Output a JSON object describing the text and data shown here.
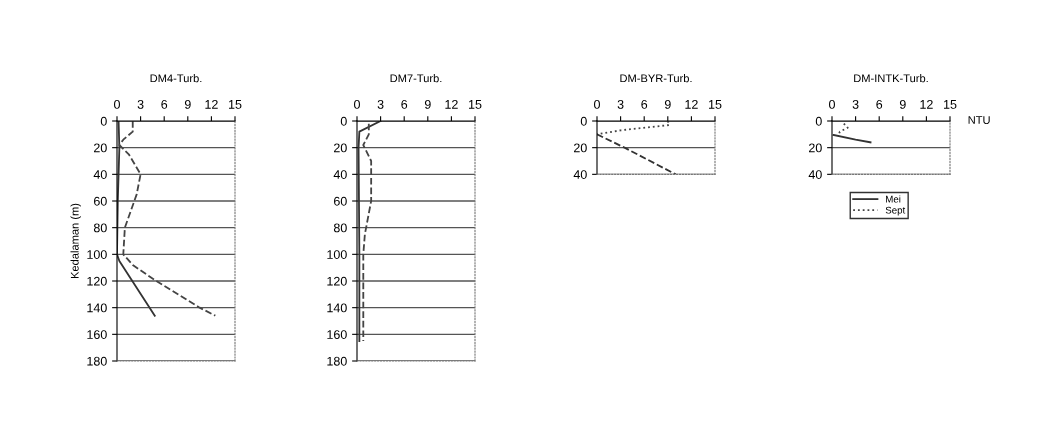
{
  "chart_data": [
    {
      "type": "line",
      "title": "DM4-Turb.",
      "ylabel": "Kedalaman (m)",
      "xlim": [
        0,
        15
      ],
      "xticks": [
        0,
        3,
        6,
        9,
        12,
        15
      ],
      "ylim": [
        180,
        0
      ],
      "yticks": [
        0,
        20,
        40,
        60,
        80,
        100,
        120,
        140,
        160,
        180
      ],
      "grid": "y",
      "legend": false,
      "series": [
        {
          "color": "#333333",
          "line_style": "solid",
          "x": [
            0.2,
            0.3,
            0.1,
            0,
            0.3,
            4.8
          ],
          "values": [
            0,
            20,
            60,
            100,
            105,
            146
          ]
        },
        {
          "color": "#444444",
          "line_style": "dashed",
          "x": [
            2,
            2,
            0.8,
            0.3,
            1.5,
            3,
            2.5,
            1,
            0.8,
            2,
            5,
            10.5,
            12.5
          ],
          "values": [
            0,
            8,
            14,
            18,
            25,
            40,
            55,
            80,
            100,
            108,
            120,
            140,
            146
          ]
        }
      ]
    },
    {
      "type": "line",
      "title": "DM7-Turb.",
      "xlim": [
        0,
        15
      ],
      "xticks": [
        0,
        3,
        6,
        9,
        12,
        15
      ],
      "ylim": [
        180,
        0
      ],
      "yticks": [
        0,
        20,
        40,
        60,
        80,
        100,
        120,
        140,
        160,
        180
      ],
      "grid": "y",
      "legend": false,
      "series": [
        {
          "color": "#333333",
          "line_style": "solid",
          "x": [
            3,
            0.3,
            0.2,
            0.3,
            0.3
          ],
          "values": [
            0,
            8,
            20,
            100,
            165
          ]
        },
        {
          "color": "#444444",
          "line_style": "dashed",
          "x": [
            1.5,
            1.5,
            0.8,
            1.8,
            1.8,
            1,
            0.8,
            0.8,
            0.8,
            0.8
          ],
          "values": [
            2,
            10,
            18,
            30,
            60,
            85,
            100,
            120,
            140,
            165
          ]
        }
      ]
    },
    {
      "type": "line",
      "title": "DM-BYR-Turb.",
      "xlim": [
        0,
        15
      ],
      "xticks": [
        0,
        3,
        6,
        9,
        12,
        15
      ],
      "ylim": [
        40,
        0
      ],
      "yticks": [
        0,
        20,
        40
      ],
      "grid": "y",
      "legend": false,
      "series": [
        {
          "color": "#333333",
          "line_style": "dashed",
          "x": [
            0,
            3.5,
            10
          ],
          "values": [
            10,
            20,
            40
          ]
        },
        {
          "color": "#444444",
          "line_style": "dotted",
          "x": [
            9,
            9.2,
            3,
            0
          ],
          "values": [
            0,
            3,
            7,
            10
          ]
        }
      ]
    },
    {
      "type": "line",
      "title": "DM-INTK-Turb.",
      "xlabel": "NTU",
      "xlim": [
        0,
        15
      ],
      "xticks": [
        0,
        3,
        6,
        9,
        12,
        15
      ],
      "ylim": [
        40,
        0
      ],
      "yticks": [
        0,
        20,
        40
      ],
      "grid": "y",
      "legend": "bottom",
      "series": [
        {
          "name": "Mei",
          "color": "#333333",
          "line_style": "solid",
          "x": [
            0.2,
            3,
            4.9
          ],
          "values": [
            10.5,
            14,
            16
          ]
        },
        {
          "name": "Sept",
          "color": "#444444",
          "line_style": "dotted",
          "x": [
            1.5,
            2,
            1,
            0.8
          ],
          "values": [
            2,
            5,
            8,
            11
          ]
        }
      ]
    }
  ]
}
